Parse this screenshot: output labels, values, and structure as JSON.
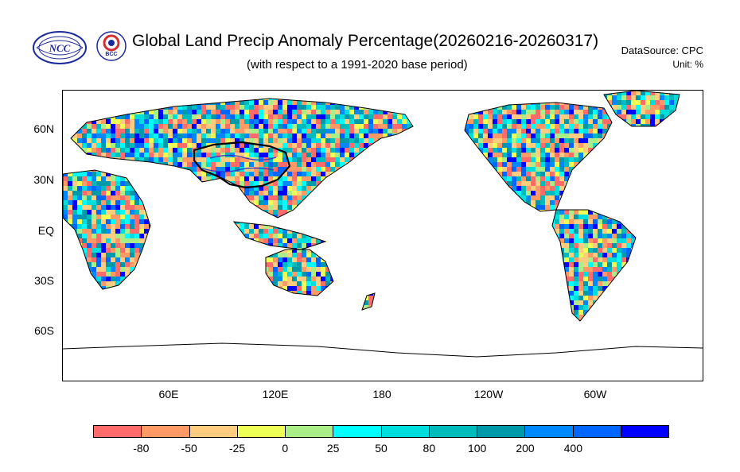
{
  "header": {
    "title": "Global Land Precip Anomaly Percentage(20260216-20260317)",
    "subtitle": "(with respect to a 1991-2020 base period)",
    "data_source": "DataSource:  CPC",
    "unit": "Unit:  %"
  },
  "logos": [
    {
      "name": "NCC",
      "text": "NCC"
    },
    {
      "name": "BCC",
      "text": "BCC"
    }
  ],
  "map": {
    "projection": "cylindrical-equidistant",
    "lon_range": [
      0,
      360
    ],
    "lat_range": [
      -90,
      90
    ],
    "lat_labels": [
      "60N",
      "30N",
      "EQ",
      "30S",
      "60S"
    ],
    "lon_labels": [
      "60E",
      "120E",
      "180",
      "120W",
      "60W"
    ]
  },
  "colorbar": {
    "colors": [
      "#ff6b6b",
      "#ff9966",
      "#ffcc80",
      "#eeff55",
      "#aaee88",
      "#00ffff",
      "#00dddd",
      "#00bbbb",
      "#0099aa",
      "#0088ff",
      "#0066ff",
      "#0000ff"
    ],
    "labels": [
      "-80",
      "-50",
      "-25",
      "0",
      "25",
      "50",
      "80",
      "100",
      "200",
      "400"
    ]
  }
}
